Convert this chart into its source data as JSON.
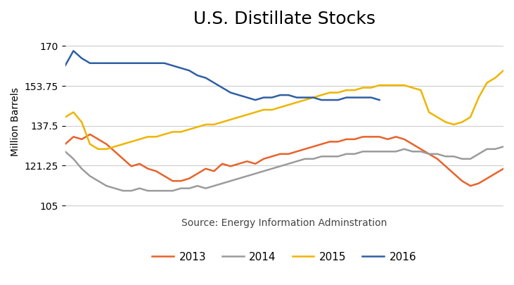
{
  "title": "U.S. Distillate Stocks",
  "ylabel": "Million Barrels",
  "source_text": "Source: Energy Information Adminstration",
  "yticks": [
    105,
    121.25,
    137.5,
    153.75,
    170
  ],
  "ylim": [
    103,
    175
  ],
  "series": {
    "2013": {
      "color": "#E8622A",
      "data": [
        130,
        133,
        132,
        134,
        132,
        130,
        127,
        124,
        121,
        122,
        120,
        119,
        117,
        115,
        115,
        116,
        118,
        120,
        119,
        122,
        121,
        122,
        123,
        122,
        124,
        125,
        126,
        126,
        127,
        128,
        129,
        130,
        131,
        131,
        132,
        132,
        133,
        133,
        133,
        132,
        133,
        132,
        130,
        128,
        126,
        124,
        121,
        118,
        115,
        113,
        114,
        116,
        118,
        120
      ]
    },
    "2014": {
      "color": "#9B9B9B",
      "data": [
        127,
        124,
        120,
        117,
        115,
        113,
        112,
        111,
        111,
        112,
        111,
        111,
        111,
        111,
        112,
        112,
        113,
        112,
        113,
        114,
        115,
        116,
        117,
        118,
        119,
        120,
        121,
        122,
        123,
        124,
        124,
        125,
        125,
        125,
        126,
        126,
        127,
        127,
        127,
        127,
        127,
        128,
        127,
        127,
        126,
        126,
        125,
        125,
        124,
        124,
        126,
        128,
        128,
        129
      ]
    },
    "2015": {
      "color": "#F0B400",
      "data": [
        141,
        143,
        139,
        130,
        128,
        128,
        129,
        130,
        131,
        132,
        133,
        133,
        134,
        135,
        135,
        136,
        137,
        138,
        138,
        139,
        140,
        141,
        142,
        143,
        144,
        144,
        145,
        146,
        147,
        148,
        149,
        150,
        151,
        151,
        152,
        152,
        153,
        153,
        154,
        154,
        154,
        154,
        153,
        152,
        143,
        141,
        139,
        138,
        139,
        141,
        149,
        155,
        157,
        160
      ]
    },
    "2016": {
      "color": "#2E5FA3",
      "data": [
        162,
        168,
        165,
        163,
        163,
        163,
        163,
        163,
        163,
        163,
        163,
        163,
        163,
        162,
        161,
        160,
        158,
        157,
        155,
        153,
        151,
        150,
        149,
        148,
        149,
        149,
        150,
        150,
        149,
        149,
        149,
        148,
        148,
        148,
        149,
        149,
        149,
        149,
        148,
        null,
        null,
        null,
        null,
        null,
        null,
        null,
        null,
        null,
        null,
        null,
        null,
        null,
        null,
        null
      ]
    }
  },
  "legend_order": [
    "2013",
    "2014",
    "2015",
    "2016"
  ],
  "background_color": "#FFFFFF",
  "grid_color": "#CCCCCC",
  "title_fontsize": 18,
  "label_fontsize": 10,
  "tick_fontsize": 10,
  "legend_fontsize": 11
}
